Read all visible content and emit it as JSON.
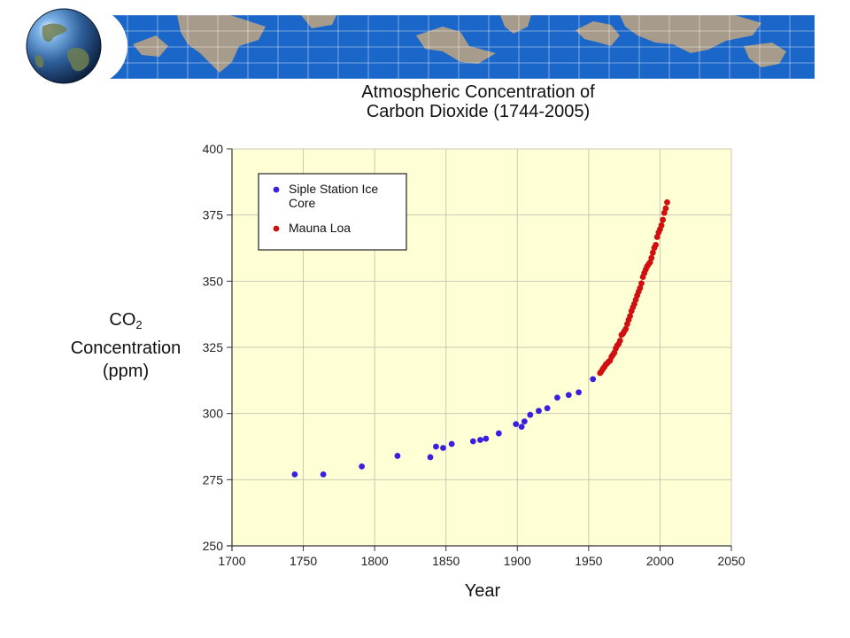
{
  "header": {
    "banner_color": "#1a66c9",
    "land_color": "#a79c8c",
    "globe_icon": "earth-globe-icon"
  },
  "chart_data": {
    "type": "scatter",
    "title": "Atmospheric Concentration of Carbon Dioxide (1744-2005)",
    "title_lines": [
      "Atmospheric Concentration of",
      "Carbon Dioxide (1744-2005)"
    ],
    "xlabel": "Year",
    "ylabel_lines": [
      "CO",
      "2",
      "Concentration",
      "(ppm)"
    ],
    "xlim": [
      1700,
      2050
    ],
    "ylim": [
      250,
      400
    ],
    "x_ticks": [
      1700,
      1750,
      1800,
      1850,
      1900,
      1950,
      2000,
      2050
    ],
    "y_ticks": [
      250,
      275,
      300,
      325,
      350,
      375,
      400
    ],
    "grid": true,
    "plot_background": "#ffffd6",
    "legend_position": "top-left",
    "series": [
      {
        "name": "Siple Station Ice Core",
        "legend_lines": [
          "Siple Station Ice",
          "Core"
        ],
        "color": "#3a1fe0",
        "x": [
          1744,
          1764,
          1791,
          1816,
          1839,
          1843,
          1848,
          1854,
          1869,
          1874,
          1878,
          1887,
          1899,
          1903,
          1905,
          1909,
          1915,
          1921,
          1928,
          1936,
          1943,
          1953
        ],
        "y": [
          277,
          277,
          280,
          284,
          283.5,
          287.5,
          287,
          288.5,
          289.5,
          290,
          290.5,
          292.5,
          296,
          295,
          297,
          299.5,
          301,
          302,
          306,
          307,
          308,
          313
        ]
      },
      {
        "name": "Mauna Loa",
        "legend_lines": [
          "Mauna Loa"
        ],
        "color": "#d01010",
        "x": [
          1958,
          1959,
          1960,
          1961,
          1962,
          1963,
          1964,
          1965,
          1966,
          1967,
          1968,
          1969,
          1970,
          1971,
          1972,
          1973,
          1974,
          1975,
          1976,
          1977,
          1978,
          1979,
          1980,
          1981,
          1982,
          1983,
          1984,
          1985,
          1986,
          1987,
          1988,
          1989,
          1990,
          1991,
          1992,
          1993,
          1994,
          1995,
          1996,
          1997,
          1998,
          1999,
          2000,
          2001,
          2002,
          2003,
          2004,
          2005
        ],
        "y": [
          315.3,
          316.0,
          316.9,
          317.6,
          318.5,
          319.0,
          319.6,
          320.0,
          321.4,
          322.2,
          323.0,
          324.6,
          325.7,
          326.3,
          327.5,
          329.7,
          330.2,
          331.1,
          332.0,
          333.8,
          335.4,
          336.8,
          338.7,
          340.1,
          341.4,
          343.0,
          344.6,
          346.0,
          347.4,
          349.2,
          351.6,
          353.1,
          354.4,
          355.6,
          356.4,
          357.1,
          358.8,
          360.8,
          362.6,
          363.7,
          366.7,
          368.4,
          369.6,
          371.1,
          373.2,
          375.8,
          377.5,
          379.8
        ]
      }
    ]
  }
}
